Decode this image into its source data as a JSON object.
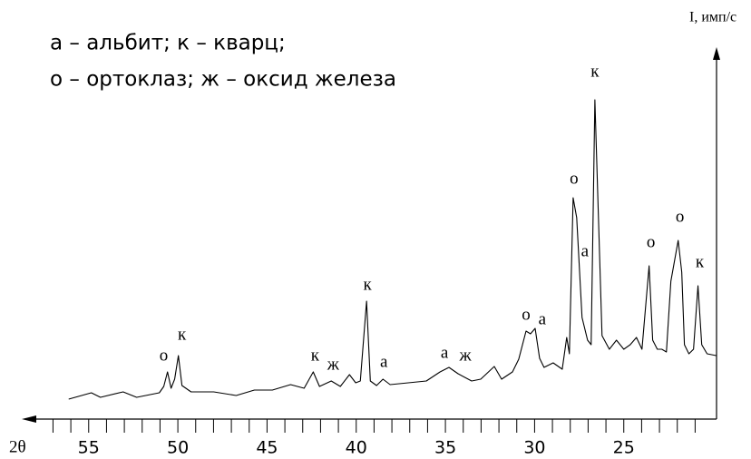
{
  "chart_data": {
    "type": "line",
    "legend_lines": [
      "а – альбит; к – кварц;",
      "о – ортоклаз; ж – оксид железа"
    ],
    "x_label": "2θ",
    "y_label": "I, имп/с",
    "color": "#000000",
    "grid": false,
    "xlim": [
      58.7,
      19.8
    ],
    "ylim": [
      0,
      100
    ],
    "xticks": [
      55,
      50,
      45,
      40,
      35,
      30,
      25
    ],
    "xminor_ticks": [
      57,
      56,
      54,
      53,
      52,
      51,
      49,
      48,
      47,
      46,
      44,
      43,
      42,
      41,
      39,
      38,
      37,
      36,
      34,
      33,
      32,
      31,
      29,
      28,
      27,
      26,
      24,
      23,
      22,
      21
    ],
    "x": [
      56.12,
      54.85,
      54.34,
      53.07,
      52.31,
      51.04,
      50.79,
      50.58,
      50.38,
      50.18,
      49.97,
      49.77,
      49.26,
      47.99,
      46.73,
      45.71,
      44.7,
      43.68,
      42.92,
      42.41,
      42.06,
      41.4,
      40.89,
      40.38,
      40.03,
      39.77,
      39.42,
      39.21,
      38.86,
      38.5,
      38.1,
      37.08,
      36.07,
      35.3,
      34.8,
      34.29,
      33.53,
      33.02,
      32.26,
      31.85,
      31.24,
      30.89,
      30.48,
      30.23,
      29.97,
      29.72,
      29.47,
      28.96,
      28.45,
      28.2,
      28.05,
      27.84,
      27.64,
      27.49,
      27.34,
      27.03,
      26.83,
      26.62,
      26.42,
      26.22,
      25.81,
      25.41,
      25.0,
      24.64,
      24.29,
      23.98,
      23.58,
      23.38,
      23.12,
      22.87,
      22.61,
      22.36,
      21.95,
      21.75,
      21.6,
      21.35,
      21.09,
      20.84,
      20.63,
      20.33,
      19.82
    ],
    "values": [
      5.5,
      7.25,
      6,
      7.5,
      6,
      7.25,
      9,
      13,
      8.5,
      11,
      17.5,
      9.25,
      7.5,
      7.5,
      6.5,
      8,
      8,
      9.5,
      8.5,
      13,
      9,
      10.5,
      9,
      12.25,
      10,
      10.5,
      32.5,
      10.5,
      9.25,
      11,
      9.5,
      10,
      10.5,
      13,
      14.25,
      12.5,
      10.5,
      11,
      14.5,
      11,
      13,
      16.5,
      24.25,
      23.5,
      25,
      16.75,
      14.25,
      15.5,
      13.75,
      22.5,
      18,
      61,
      55.5,
      41.75,
      28,
      21.75,
      20.5,
      88,
      55.5,
      23,
      19.25,
      21.75,
      19.25,
      20.5,
      22.5,
      19.25,
      42.25,
      21.75,
      19.25,
      19.25,
      18.5,
      38,
      49.25,
      40.5,
      20.5,
      18,
      19.25,
      36.75,
      20.5,
      18,
      17.5
    ],
    "annotations": [
      {
        "text": "о",
        "x": 50.79,
        "y": 17.25
      },
      {
        "text": "к",
        "x": 49.77,
        "y": 23
      },
      {
        "text": "к",
        "x": 42.31,
        "y": 17.25
      },
      {
        "text": "ж",
        "x": 41.29,
        "y": 14.75
      },
      {
        "text": "к",
        "x": 39.37,
        "y": 36.75
      },
      {
        "text": "а",
        "x": 38.45,
        "y": 15.5
      },
      {
        "text": "а",
        "x": 35.05,
        "y": 18
      },
      {
        "text": "ж",
        "x": 33.88,
        "y": 17.25
      },
      {
        "text": "о",
        "x": 30.48,
        "y": 28.5
      },
      {
        "text": "а",
        "x": 29.57,
        "y": 27.25
      },
      {
        "text": "о",
        "x": 27.79,
        "y": 66
      },
      {
        "text": "а",
        "x": 27.18,
        "y": 46
      },
      {
        "text": "к",
        "x": 26.62,
        "y": 95.5
      },
      {
        "text": "о",
        "x": 23.48,
        "y": 48.5
      },
      {
        "text": "о",
        "x": 21.85,
        "y": 55.5
      },
      {
        "text": "к",
        "x": 20.74,
        "y": 43
      }
    ]
  }
}
